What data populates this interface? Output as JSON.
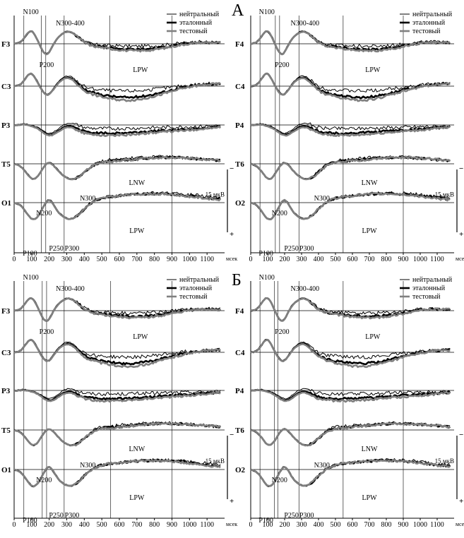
{
  "figure": {
    "panels": [
      {
        "letter": "А"
      },
      {
        "letter": "Б"
      }
    ],
    "legend": [
      {
        "label": "нейтральный",
        "color": "#000000",
        "weight": "thin"
      },
      {
        "label": "эталонный",
        "color": "#000000",
        "weight": "thick"
      },
      {
        "label": "тестовый",
        "color": "#808080",
        "weight": "thick"
      }
    ],
    "scale_label": "15 мкВ",
    "polarity": {
      "neg": "−",
      "pos": "+"
    }
  },
  "chart_data": [
    {
      "type": "line",
      "panel": "А",
      "side": "left",
      "x_unit": "мсек",
      "x_ticks": [
        0,
        100,
        200,
        300,
        400,
        500,
        600,
        700,
        800,
        900,
        1000,
        1100
      ],
      "xlim": [
        0,
        1200
      ],
      "markers": [
        55,
        155,
        180,
        285,
        545,
        900
      ],
      "channels": [
        "F3",
        "C3",
        "P3",
        "T5",
        "O1"
      ],
      "components": [
        "N100",
        "P200",
        "N300-400",
        "LPW",
        "LNW",
        "N200",
        "N300",
        "P100",
        "P250",
        "P300",
        "LPW"
      ]
    },
    {
      "type": "line",
      "panel": "А",
      "side": "right",
      "x_unit": "мсек",
      "x_ticks": [
        0,
        100,
        200,
        300,
        400,
        500,
        600,
        700,
        800,
        900,
        1000,
        1100
      ],
      "xlim": [
        0,
        1200
      ],
      "markers": [
        55,
        145,
        170,
        285,
        545,
        900
      ],
      "channels": [
        "F4",
        "C4",
        "P4",
        "T6",
        "O2"
      ],
      "components": [
        "N100",
        "P200",
        "N300-400",
        "LPW",
        "LNW",
        "N200",
        "N300",
        "P100",
        "P250",
        "P300",
        "LPW"
      ]
    },
    {
      "type": "line",
      "panel": "Б",
      "side": "left",
      "x_unit": "мсек",
      "x_ticks": [
        0,
        100,
        200,
        300,
        400,
        500,
        600,
        700,
        800,
        900,
        1000,
        1100
      ],
      "xlim": [
        0,
        1200
      ],
      "markers": [
        55,
        160,
        185,
        285,
        550,
        900
      ],
      "channels": [
        "F3",
        "C3",
        "P3",
        "T5",
        "O1"
      ],
      "components": [
        "N100",
        "P200",
        "N300-400",
        "LPW",
        "LNW",
        "N200",
        "N300",
        "P100",
        "P250",
        "P300",
        "LPW"
      ]
    },
    {
      "type": "line",
      "panel": "Б",
      "side": "right",
      "x_unit": "мсек",
      "x_ticks": [
        0,
        100,
        200,
        300,
        400,
        500,
        600,
        700,
        800,
        900,
        1000,
        1100
      ],
      "xlim": [
        0,
        1200
      ],
      "markers": [
        55,
        140,
        160,
        285,
        545,
        900
      ],
      "channels": [
        "F4",
        "C4",
        "P4",
        "T6",
        "O2"
      ],
      "components": [
        "N100",
        "P200",
        "N300-400",
        "LPW",
        "LNW",
        "N200",
        "N300",
        "P100",
        "P250",
        "P300",
        "LPW"
      ]
    }
  ]
}
